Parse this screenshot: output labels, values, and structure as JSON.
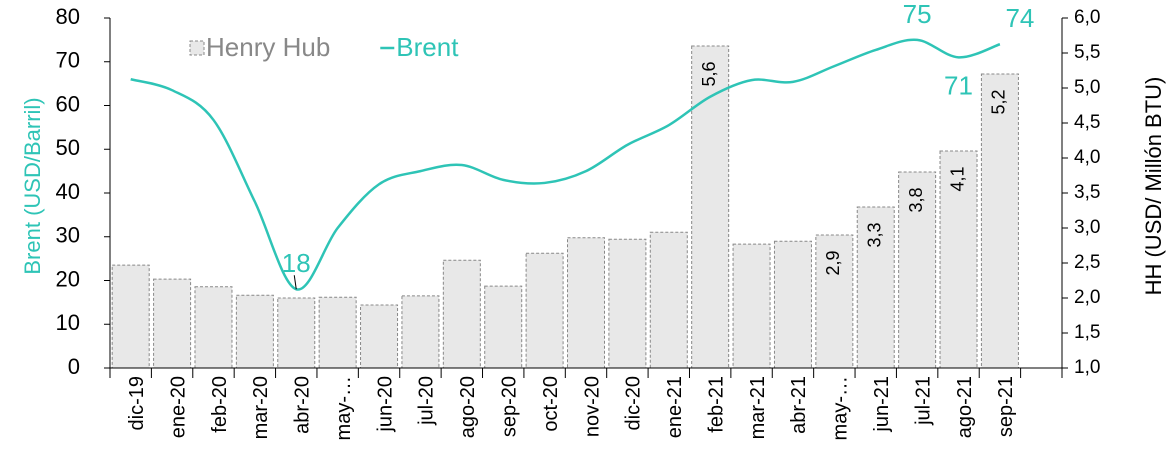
{
  "chart_data": {
    "type": "bar",
    "categories": [
      "dic-19",
      "ene-20",
      "feb-20",
      "mar-20",
      "abr-20",
      "may-…",
      "jun-20",
      "jul-20",
      "ago-20",
      "sep-20",
      "oct-20",
      "nov-20",
      "dic-20",
      "ene-21",
      "feb-21",
      "mar-21",
      "abr-21",
      "may-…",
      "jun-21",
      "jul-21",
      "ago-21",
      "sep-21",
      null
    ],
    "series": [
      {
        "name": "Henry Hub",
        "type": "bar",
        "axis": "y2",
        "color": "#e8e8e8",
        "values": [
          2.47,
          2.27,
          2.16,
          2.04,
          2.0,
          2.01,
          1.9,
          2.03,
          2.54,
          2.17,
          2.64,
          2.86,
          2.84,
          2.94,
          5.6,
          2.77,
          2.81,
          2.9,
          3.3,
          3.8,
          4.1,
          5.2,
          null
        ],
        "value_labels": [
          null,
          null,
          null,
          null,
          null,
          null,
          null,
          null,
          null,
          null,
          null,
          null,
          null,
          null,
          "5,6",
          null,
          null,
          "2,9",
          "3,3",
          "3,8",
          "4,1",
          "5,2",
          null
        ]
      },
      {
        "name": "Brent",
        "type": "line",
        "axis": "y",
        "color": "#2ec4b6",
        "values": [
          66,
          63.5,
          56.7,
          38,
          18,
          32,
          42,
          45,
          46.4,
          43,
          42.3,
          45,
          51,
          55.5,
          62,
          65.8,
          65.4,
          69,
          72.7,
          75,
          71,
          74,
          null
        ],
        "value_labels": [
          null,
          null,
          null,
          null,
          "18",
          null,
          null,
          null,
          null,
          null,
          null,
          null,
          null,
          null,
          null,
          null,
          null,
          null,
          null,
          "75",
          "71",
          "74",
          null
        ]
      }
    ],
    "y_label": "Brent (USD/Barril)",
    "y2_label": "HH (USD/ Millón BTU)",
    "ylim": [
      0,
      80
    ],
    "yticks": [
      0,
      10,
      20,
      30,
      40,
      50,
      60,
      70,
      80
    ],
    "y2lim": [
      1,
      6
    ],
    "y2ticks": [
      {
        "value": 1,
        "label": "1,0"
      },
      {
        "value": 1.5,
        "label": "1,5"
      },
      {
        "value": 2,
        "label": "2,0"
      },
      {
        "value": 2.5,
        "label": "2,5"
      },
      {
        "value": 3,
        "label": "3,0"
      },
      {
        "value": 3.5,
        "label": "3,5"
      },
      {
        "value": 4,
        "label": "4,0"
      },
      {
        "value": 4.5,
        "label": "4,5"
      },
      {
        "value": 5,
        "label": "5,0"
      },
      {
        "value": 5.5,
        "label": "5,5"
      },
      {
        "value": 6,
        "label": "6,0"
      }
    ],
    "legend": "top"
  }
}
